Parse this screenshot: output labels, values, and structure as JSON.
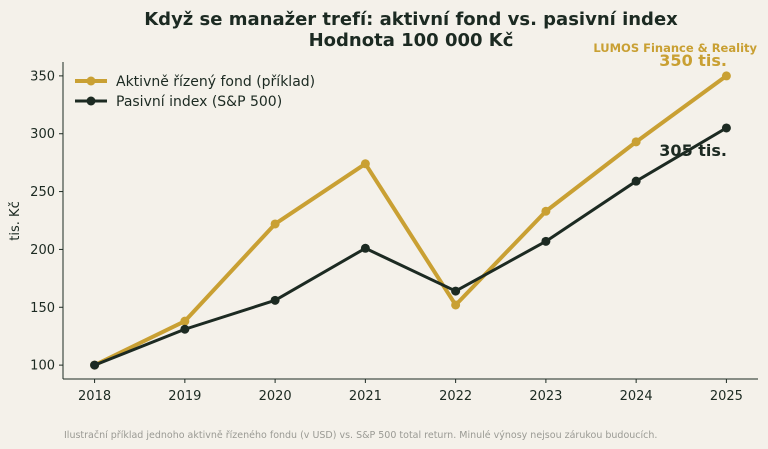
{
  "brand": {
    "text": "LUMOS Finance & Reality",
    "color": "#c9a033"
  },
  "chart_data": {
    "type": "line",
    "title": "Když se manažer trefí: aktivní fond vs. pasivní index",
    "subtitle": "Hodnota 100 000 Kč",
    "xlabel": "",
    "ylabel": "tis. Kč",
    "x": [
      2018,
      2019,
      2020,
      2021,
      2022,
      2023,
      2024,
      2025
    ],
    "ylim": [
      88,
      362
    ],
    "yticks": [
      100,
      150,
      200,
      250,
      300,
      350
    ],
    "grid": false,
    "legend_position": "top-left",
    "series": [
      {
        "name": "Aktivně řízený fond (příklad)",
        "color": "#c9a033",
        "values": [
          100,
          138,
          222,
          274,
          152,
          233,
          293,
          350
        ],
        "end_label": "350 tis."
      },
      {
        "name": "Pasivní index (S&P 500)",
        "color": "#1c2a22",
        "values": [
          100,
          131,
          156,
          201,
          164,
          207,
          259,
          305
        ],
        "end_label": "305 tis."
      }
    ]
  },
  "footnote": "Ilustrační příklad jednoho aktivně řízeného fondu (v USD) vs. S&P 500 total return. Minulé výnosy nejsou zárukou budoucích."
}
